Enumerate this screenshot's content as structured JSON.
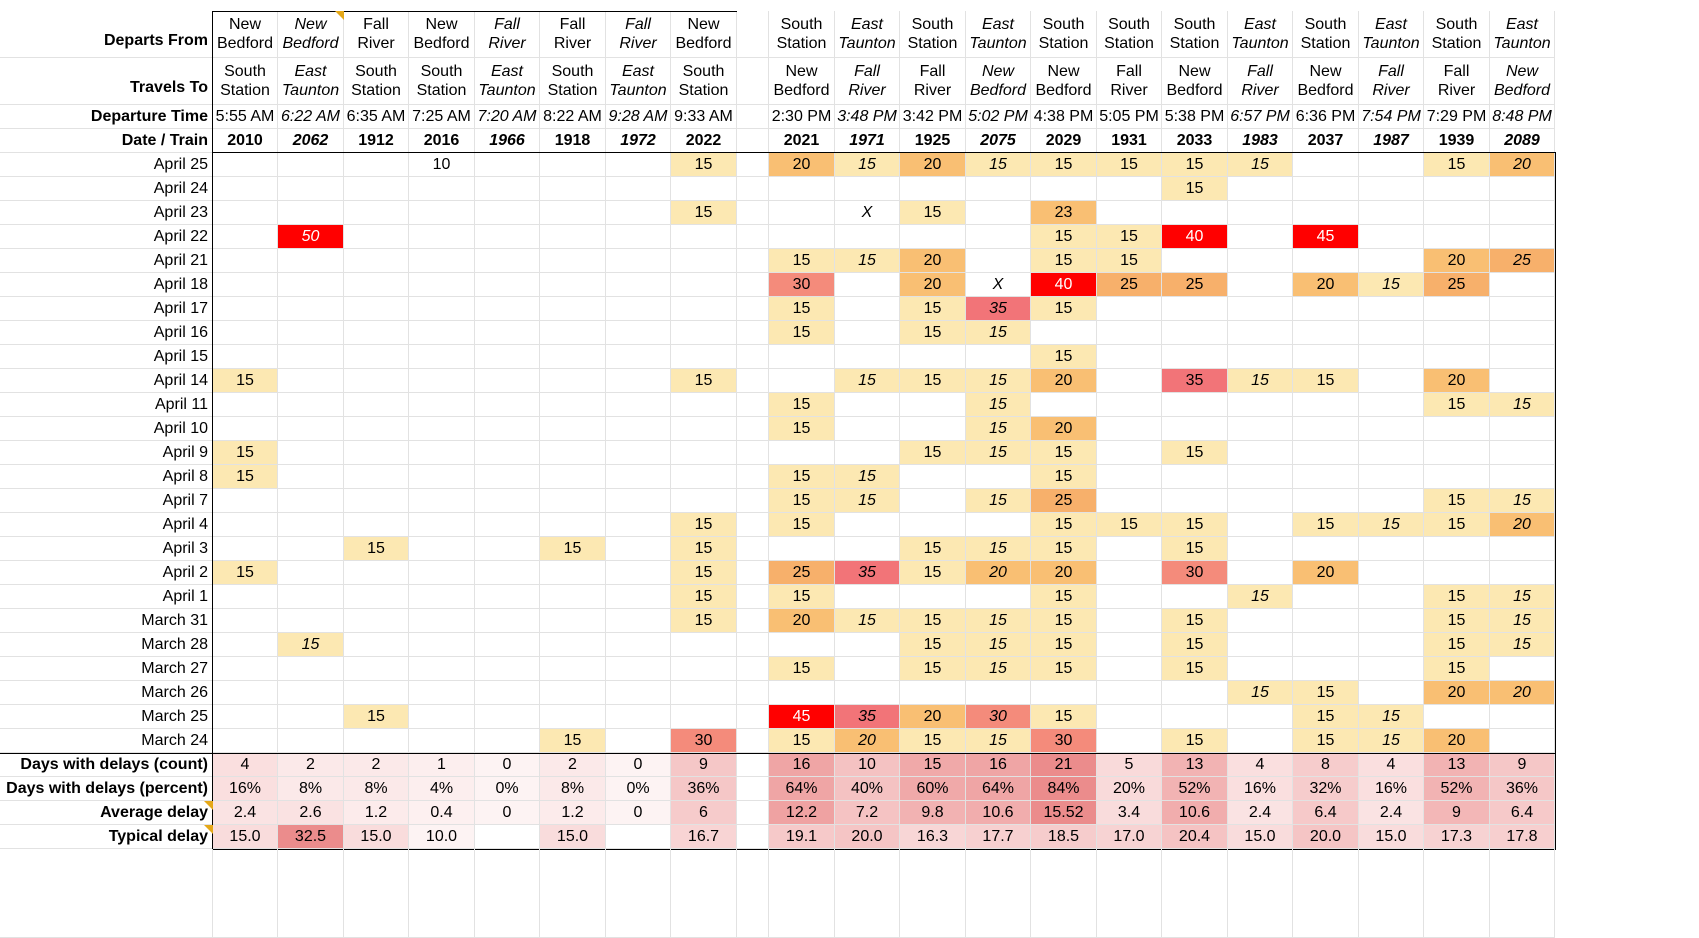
{
  "row_labels": {
    "departs_from": "Departs From",
    "travels_to": "Travels To",
    "departure_time": "Departure Time",
    "date_train": "Date / Train",
    "days_count": "Days with delays (count)",
    "days_percent": "Days with delays (percent)",
    "average": "Average delay",
    "typical": "Typical delay"
  },
  "trains": [
    {
      "from": [
        "New",
        "Bedford"
      ],
      "to": [
        "South",
        "Station"
      ],
      "time": "5:55 AM",
      "number": "2010",
      "italic": false
    },
    {
      "from": [
        "New",
        "Bedford"
      ],
      "to": [
        "East",
        "Taunton"
      ],
      "time": "6:22 AM",
      "number": "2062",
      "italic": true
    },
    {
      "from": [
        "Fall",
        "River"
      ],
      "to": [
        "South",
        "Station"
      ],
      "time": "6:35 AM",
      "number": "1912",
      "italic": false
    },
    {
      "from": [
        "New",
        "Bedford"
      ],
      "to": [
        "South",
        "Station"
      ],
      "time": "7:25 AM",
      "number": "2016",
      "italic": false
    },
    {
      "from": [
        "Fall",
        "River"
      ],
      "to": [
        "East",
        "Taunton"
      ],
      "time": "7:20 AM",
      "number": "1966",
      "italic": true
    },
    {
      "from": [
        "Fall",
        "River"
      ],
      "to": [
        "South",
        "Station"
      ],
      "time": "8:22 AM",
      "number": "1918",
      "italic": false
    },
    {
      "from": [
        "Fall",
        "River"
      ],
      "to": [
        "East",
        "Taunton"
      ],
      "time": "9:28 AM",
      "number": "1972",
      "italic": true
    },
    {
      "from": [
        "New",
        "Bedford"
      ],
      "to": [
        "South",
        "Station"
      ],
      "time": "9:33 AM",
      "number": "2022",
      "italic": false
    },
    {
      "from": [
        "South",
        "Station"
      ],
      "to": [
        "New",
        "Bedford"
      ],
      "time": "2:30 PM",
      "number": "2021",
      "italic": false
    },
    {
      "from": [
        "East",
        "Taunton"
      ],
      "to": [
        "Fall",
        "River"
      ],
      "time": "3:48 PM",
      "number": "1971",
      "italic": true
    },
    {
      "from": [
        "South",
        "Station"
      ],
      "to": [
        "Fall",
        "River"
      ],
      "time": "3:42 PM",
      "number": "1925",
      "italic": false
    },
    {
      "from": [
        "East",
        "Taunton"
      ],
      "to": [
        "New",
        "Bedford"
      ],
      "time": "5:02 PM",
      "number": "2075",
      "italic": true
    },
    {
      "from": [
        "South",
        "Station"
      ],
      "to": [
        "New",
        "Bedford"
      ],
      "time": "4:38 PM",
      "number": "2029",
      "italic": false
    },
    {
      "from": [
        "South",
        "Station"
      ],
      "to": [
        "Fall",
        "River"
      ],
      "time": "5:05 PM",
      "number": "1931",
      "italic": false
    },
    {
      "from": [
        "South",
        "Station"
      ],
      "to": [
        "New",
        "Bedford"
      ],
      "time": "5:38 PM",
      "number": "2033",
      "italic": false
    },
    {
      "from": [
        "East",
        "Taunton"
      ],
      "to": [
        "Fall",
        "River"
      ],
      "time": "6:57 PM",
      "number": "1983",
      "italic": true
    },
    {
      "from": [
        "South",
        "Station"
      ],
      "to": [
        "New",
        "Bedford"
      ],
      "time": "6:36 PM",
      "number": "2037",
      "italic": false
    },
    {
      "from": [
        "East",
        "Taunton"
      ],
      "to": [
        "Fall",
        "River"
      ],
      "time": "7:54 PM",
      "number": "1987",
      "italic": true
    },
    {
      "from": [
        "South",
        "Station"
      ],
      "to": [
        "Fall",
        "River"
      ],
      "time": "7:29 PM",
      "number": "1939",
      "italic": false
    },
    {
      "from": [
        "East",
        "Taunton"
      ],
      "to": [
        "New",
        "Bedford"
      ],
      "time": "8:48 PM",
      "number": "2089",
      "italic": true
    }
  ],
  "dates": [
    "April 25",
    "April 24",
    "April 23",
    "April 22",
    "April 21",
    "April 18",
    "April 17",
    "April 16",
    "April 15",
    "April 14",
    "April 11",
    "April 10",
    "April 9",
    "April 8",
    "April 7",
    "April 4",
    "April 3",
    "April 2",
    "April 1",
    "March 31",
    "March 28",
    "March 27",
    "March 26",
    "March 25",
    "March 24"
  ],
  "delays": [
    [
      "",
      "",
      "",
      "10",
      "",
      "",
      "",
      "15",
      "20",
      "15",
      "20",
      "15",
      "15",
      "15",
      "15",
      "15",
      "",
      "",
      "15",
      "20"
    ],
    [
      "",
      "",
      "",
      "",
      "",
      "",
      "",
      "",
      "",
      "",
      "",
      "",
      "",
      "",
      "15",
      "",
      "",
      "",
      "",
      ""
    ],
    [
      "",
      "",
      "",
      "",
      "",
      "",
      "",
      "15",
      "",
      "X",
      "15",
      "",
      "23",
      "",
      "",
      "",
      "",
      "",
      "",
      ""
    ],
    [
      "",
      "50",
      "",
      "",
      "",
      "",
      "",
      "",
      "",
      "",
      "",
      "",
      "15",
      "15",
      "40",
      "",
      "45",
      "",
      "",
      ""
    ],
    [
      "",
      "",
      "",
      "",
      "",
      "",
      "",
      "",
      "15",
      "15",
      "20",
      "",
      "15",
      "15",
      "",
      "",
      "",
      "",
      "20",
      "25"
    ],
    [
      "",
      "",
      "",
      "",
      "",
      "",
      "",
      "",
      "30",
      "",
      "20",
      "X",
      "40",
      "25",
      "25",
      "",
      "20",
      "15",
      "25",
      ""
    ],
    [
      "",
      "",
      "",
      "",
      "",
      "",
      "",
      "",
      "15",
      "",
      "15",
      "35",
      "15",
      "",
      "",
      "",
      "",
      "",
      "",
      ""
    ],
    [
      "",
      "",
      "",
      "",
      "",
      "",
      "",
      "",
      "15",
      "",
      "15",
      "15",
      "",
      "",
      "",
      "",
      "",
      "",
      "",
      ""
    ],
    [
      "",
      "",
      "",
      "",
      "",
      "",
      "",
      "",
      "",
      "",
      "",
      "",
      "15",
      "",
      "",
      "",
      "",
      "",
      "",
      ""
    ],
    [
      "15",
      "",
      "",
      "",
      "",
      "",
      "",
      "15",
      "",
      "15",
      "15",
      "15",
      "20",
      "",
      "35",
      "15",
      "15",
      "",
      "20",
      ""
    ],
    [
      "",
      "",
      "",
      "",
      "",
      "",
      "",
      "",
      "15",
      "",
      "",
      "15",
      "",
      "",
      "",
      "",
      "",
      "",
      "15",
      "15"
    ],
    [
      "",
      "",
      "",
      "",
      "",
      "",
      "",
      "",
      "15",
      "",
      "",
      "15",
      "20",
      "",
      "",
      "",
      "",
      "",
      "",
      ""
    ],
    [
      "15",
      "",
      "",
      "",
      "",
      "",
      "",
      "",
      "",
      "",
      "15",
      "15",
      "15",
      "",
      "15",
      "",
      "",
      "",
      "",
      ""
    ],
    [
      "15",
      "",
      "",
      "",
      "",
      "",
      "",
      "",
      "15",
      "15",
      "",
      "",
      "15",
      "",
      "",
      "",
      "",
      "",
      "",
      ""
    ],
    [
      "",
      "",
      "",
      "",
      "",
      "",
      "",
      "",
      "15",
      "15",
      "",
      "15",
      "25",
      "",
      "",
      "",
      "",
      "",
      "15",
      "15"
    ],
    [
      "",
      "",
      "",
      "",
      "",
      "",
      "",
      "15",
      "15",
      "",
      "",
      "",
      "15",
      "15",
      "15",
      "",
      "15",
      "15",
      "15",
      "20"
    ],
    [
      "",
      "",
      "15",
      "",
      "",
      "15",
      "",
      "15",
      "",
      "",
      "15",
      "15",
      "15",
      "",
      "15",
      "",
      "",
      "",
      "",
      ""
    ],
    [
      "15",
      "",
      "",
      "",
      "",
      "",
      "",
      "15",
      "25",
      "35",
      "15",
      "20",
      "20",
      "",
      "30",
      "",
      "20",
      "",
      "",
      ""
    ],
    [
      "",
      "",
      "",
      "",
      "",
      "",
      "",
      "15",
      "15",
      "",
      "",
      "",
      "15",
      "",
      "",
      "15",
      "",
      "",
      "15",
      "15"
    ],
    [
      "",
      "",
      "",
      "",
      "",
      "",
      "",
      "15",
      "20",
      "15",
      "15",
      "15",
      "15",
      "",
      "15",
      "",
      "",
      "",
      "15",
      "15"
    ],
    [
      "",
      "15",
      "",
      "",
      "",
      "",
      "",
      "",
      "",
      "",
      "15",
      "15",
      "15",
      "",
      "15",
      "",
      "",
      "",
      "15",
      "15"
    ],
    [
      "",
      "",
      "",
      "",
      "",
      "",
      "",
      "",
      "15",
      "",
      "15",
      "15",
      "15",
      "",
      "15",
      "",
      "",
      "",
      "15",
      ""
    ],
    [
      "",
      "",
      "",
      "",
      "",
      "",
      "",
      "",
      "",
      "",
      "",
      "",
      "",
      "",
      "",
      "15",
      "15",
      "",
      "20",
      "20"
    ],
    [
      "",
      "",
      "15",
      "",
      "",
      "",
      "",
      "",
      "45",
      "35",
      "20",
      "30",
      "15",
      "",
      "",
      "",
      "15",
      "15",
      "",
      ""
    ],
    [
      "",
      "",
      "",
      "",
      "",
      "15",
      "",
      "30",
      "15",
      "20",
      "15",
      "15",
      "30",
      "",
      "15",
      "",
      "15",
      "15",
      "20",
      ""
    ]
  ],
  "summary": {
    "count": [
      "4",
      "2",
      "2",
      "1",
      "0",
      "2",
      "0",
      "9",
      "16",
      "10",
      "15",
      "16",
      "21",
      "5",
      "13",
      "4",
      "8",
      "4",
      "13",
      "9"
    ],
    "percent": [
      "16%",
      "8%",
      "8%",
      "4%",
      "0%",
      "8%",
      "0%",
      "36%",
      "64%",
      "40%",
      "60%",
      "64%",
      "84%",
      "20%",
      "52%",
      "16%",
      "32%",
      "16%",
      "52%",
      "36%"
    ],
    "average": [
      "2.4",
      "2.6",
      "1.2",
      "0.4",
      "0",
      "1.2",
      "0",
      "6",
      "12.2",
      "7.2",
      "9.8",
      "10.6",
      "15.52",
      "3.4",
      "10.6",
      "2.4",
      "6.4",
      "2.4",
      "9",
      "6.4"
    ],
    "typical": [
      "15.0",
      "32.5",
      "15.0",
      "10.0",
      "",
      "15.0",
      "",
      "16.7",
      "19.1",
      "20.0",
      "16.3",
      "17.7",
      "18.5",
      "17.0",
      "20.4",
      "15.0",
      "20.0",
      "15.0",
      "17.3",
      "17.8"
    ]
  },
  "colors": {
    "d15": "#fce8b2",
    "d20": "#f9bf73",
    "d25": "#f7b06b",
    "d30": "#f48b7b",
    "d35": "#f27478",
    "d40": "#ff0000",
    "summary_low": "#fdf3f3",
    "summary_high": "#eb8c8c",
    "note_marker": "#e5a818"
  }
}
